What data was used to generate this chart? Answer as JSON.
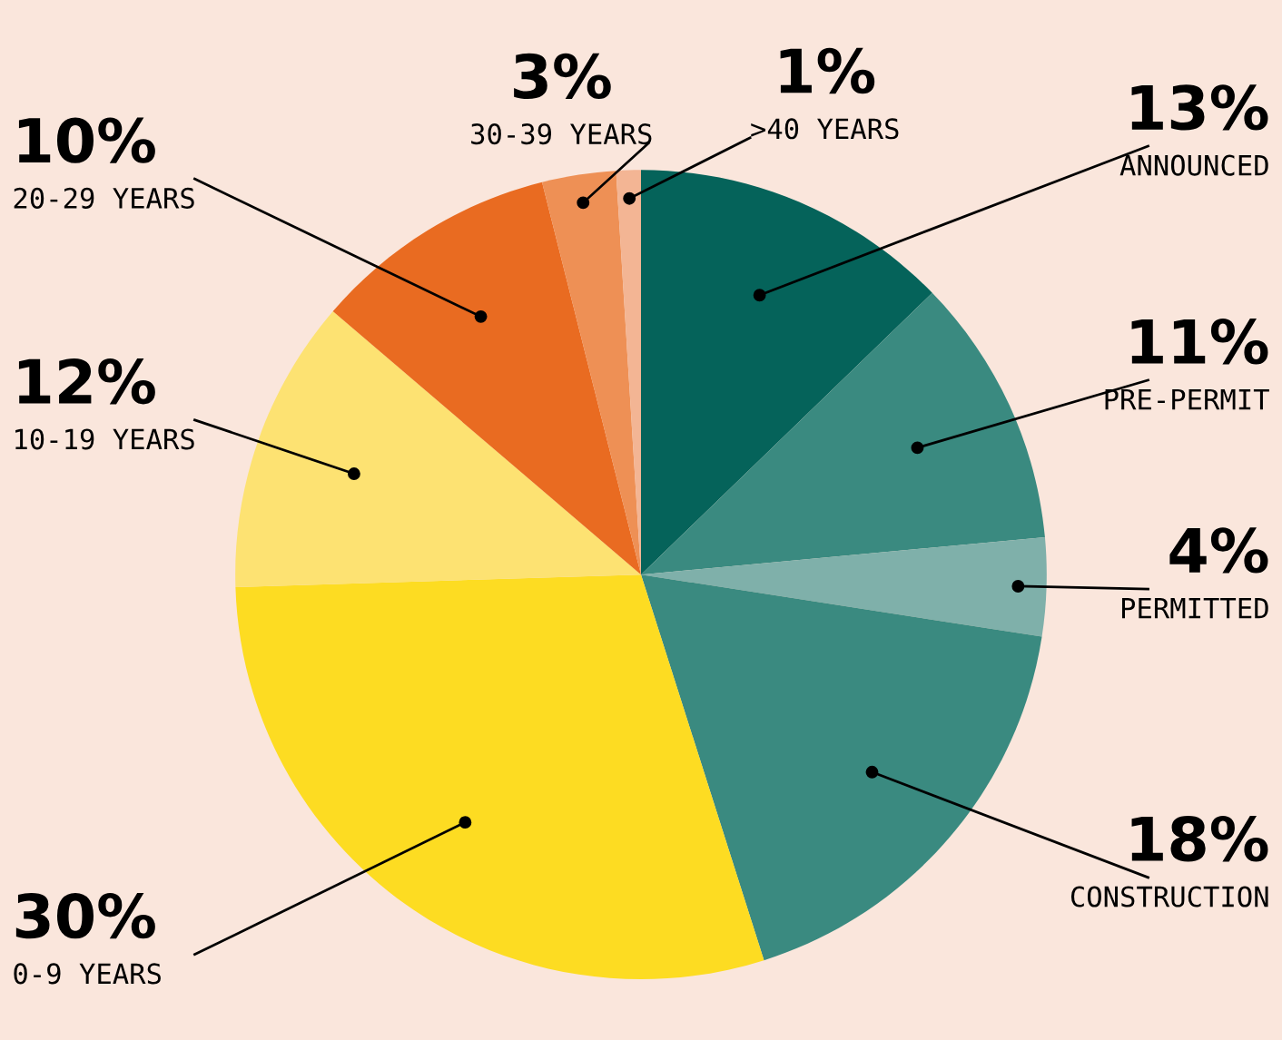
{
  "chart_data": {
    "type": "pie",
    "categories": [
      "ANNOUNCED",
      "PRE-PERMIT",
      "PERMITTED",
      "CONSTRUCTION",
      "0-9 YEARS",
      "10-19 YEARS",
      "20-29 YEARS",
      "30-39 YEARS",
      ">40 YEARS"
    ],
    "values": [
      13,
      11,
      4,
      18,
      30,
      12,
      10,
      3,
      1
    ],
    "value_labels": [
      "13%",
      "11%",
      "4%",
      "18%",
      "30%",
      "12%",
      "10%",
      "3%",
      "1%"
    ],
    "colors": [
      "#05635a",
      "#3a8a80",
      "#7fb0aa",
      "#3a8a80",
      "#fddc22",
      "#fde272",
      "#e96b21",
      "#ee9055",
      "#f3b594"
    ],
    "legend": false
  }
}
